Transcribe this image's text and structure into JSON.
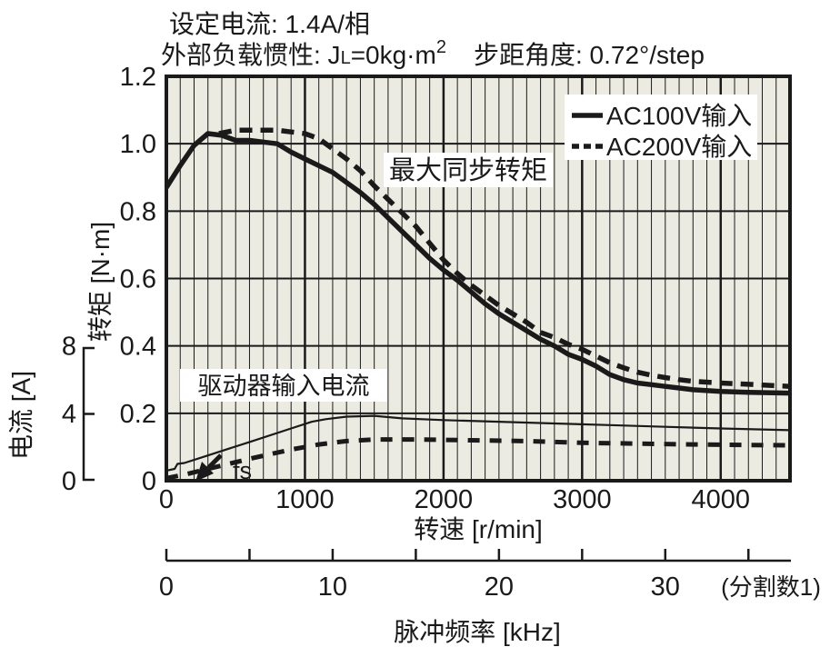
{
  "header": {
    "line1": "设定电流: 1.4A/相",
    "line2_prefix": "外部负载惯性: J",
    "line2_sub": "L",
    "line2_mid": "=0kg·m",
    "line2_sup": "2",
    "line2_right": "步距角度: 0.72°/step"
  },
  "chart_data": {
    "type": "line",
    "title": "设定电流: 1.4A/相  外部负载惯性: JL=0kg·m²  步距角度: 0.72°/step",
    "x_axis": {
      "label": "转速 [r/min]",
      "min": 0,
      "max": 4500,
      "minor_step": 100,
      "major_ticks": [
        0,
        1000,
        2000,
        3000,
        4000
      ],
      "major_tick_labels": [
        "0",
        "1000",
        "2000",
        "3000",
        "4000"
      ],
      "grid": true
    },
    "y_axis": {
      "label": "转矩 [N·m]",
      "min": 0,
      "max": 1.2,
      "ticks": [
        {
          "v": 0,
          "label": "0"
        },
        {
          "v": 0.2,
          "label": "0.2"
        },
        {
          "v": 0.4,
          "label": "0.4"
        },
        {
          "v": 0.6,
          "label": "0.6"
        },
        {
          "v": 0.8,
          "label": "0.8"
        },
        {
          "v": 1.0,
          "label": "1.0"
        },
        {
          "v": 1.2,
          "label": "1.2"
        }
      ],
      "grid": true
    },
    "y2_axis": {
      "label": "电流 [A]",
      "min": 0,
      "max": 8,
      "ticks": [
        {
          "v": 0,
          "label": "0"
        },
        {
          "v": 4,
          "label": "4"
        },
        {
          "v": 8,
          "label": "8"
        }
      ],
      "nm_per_amp": 0.05
    },
    "x2_axis": {
      "label": "脉冲频率 [kHz]",
      "note": "(分割数1)",
      "min": 0,
      "tick_step_khz": 5,
      "max_tick_khz": 35,
      "rpm_per_khz": 120,
      "labeled_ticks": [
        {
          "khz": 0,
          "label": "0"
        },
        {
          "khz": 10,
          "label": "10"
        },
        {
          "khz": 20,
          "label": "20"
        },
        {
          "khz": 30,
          "label": "30"
        }
      ]
    },
    "legend": {
      "position": "top-right",
      "entries": [
        {
          "label": "AC100V输入",
          "line": "solid"
        },
        {
          "label": "AC200V输入",
          "line": "dashed"
        }
      ]
    },
    "annotations": [
      {
        "text": "最大同步转矩",
        "target": "torque curves"
      },
      {
        "text": "驱动器输入电流",
        "target": "current curves"
      },
      {
        "text": "fs",
        "target": "arrow to x-axis at ~240 r/min"
      }
    ],
    "series": [
      {
        "name": "AC100V输入 最大同步转矩",
        "axis": "torque",
        "style": "solid",
        "unit": "N·m",
        "points": [
          [
            0,
            0.87
          ],
          [
            100,
            0.935
          ],
          [
            200,
            0.995
          ],
          [
            300,
            1.03
          ],
          [
            400,
            1.025
          ],
          [
            500,
            1.01
          ],
          [
            600,
            1.01
          ],
          [
            700,
            1.005
          ],
          [
            800,
            1.0
          ],
          [
            900,
            0.975
          ],
          [
            1000,
            0.955
          ],
          [
            1100,
            0.935
          ],
          [
            1200,
            0.915
          ],
          [
            1300,
            0.885
          ],
          [
            1400,
            0.855
          ],
          [
            1500,
            0.82
          ],
          [
            1600,
            0.78
          ],
          [
            1700,
            0.74
          ],
          [
            1800,
            0.7
          ],
          [
            1900,
            0.66
          ],
          [
            2000,
            0.625
          ],
          [
            2100,
            0.595
          ],
          [
            2200,
            0.56
          ],
          [
            2300,
            0.525
          ],
          [
            2400,
            0.495
          ],
          [
            2500,
            0.47
          ],
          [
            2600,
            0.445
          ],
          [
            2700,
            0.42
          ],
          [
            2800,
            0.4
          ],
          [
            2900,
            0.375
          ],
          [
            3000,
            0.36
          ],
          [
            3100,
            0.34
          ],
          [
            3200,
            0.315
          ],
          [
            3300,
            0.3
          ],
          [
            3400,
            0.29
          ],
          [
            3500,
            0.285
          ],
          [
            3600,
            0.28
          ],
          [
            3700,
            0.275
          ],
          [
            3800,
            0.27
          ],
          [
            4000,
            0.265
          ],
          [
            4200,
            0.262
          ],
          [
            4500,
            0.26
          ]
        ]
      },
      {
        "name": "AC200V输入 最大同步转矩",
        "axis": "torque",
        "style": "dashed",
        "unit": "N·m",
        "points": [
          [
            380,
            1.03
          ],
          [
            500,
            1.04
          ],
          [
            600,
            1.04
          ],
          [
            700,
            1.04
          ],
          [
            800,
            1.04
          ],
          [
            900,
            1.035
          ],
          [
            1000,
            1.03
          ],
          [
            1100,
            1.015
          ],
          [
            1200,
            0.985
          ],
          [
            1300,
            0.955
          ],
          [
            1400,
            0.92
          ],
          [
            1500,
            0.875
          ],
          [
            1600,
            0.835
          ],
          [
            1700,
            0.795
          ],
          [
            1800,
            0.755
          ],
          [
            1900,
            0.705
          ],
          [
            2000,
            0.655
          ],
          [
            2100,
            0.615
          ],
          [
            2200,
            0.58
          ],
          [
            2300,
            0.55
          ],
          [
            2400,
            0.52
          ],
          [
            2500,
            0.495
          ],
          [
            2600,
            0.47
          ],
          [
            2700,
            0.44
          ],
          [
            2800,
            0.425
          ],
          [
            2900,
            0.405
          ],
          [
            3000,
            0.39
          ],
          [
            3100,
            0.37
          ],
          [
            3200,
            0.35
          ],
          [
            3300,
            0.335
          ],
          [
            3400,
            0.322
          ],
          [
            3500,
            0.313
          ],
          [
            3600,
            0.306
          ],
          [
            3700,
            0.3
          ],
          [
            3800,
            0.295
          ],
          [
            4000,
            0.29
          ],
          [
            4200,
            0.286
          ],
          [
            4500,
            0.28
          ]
        ]
      },
      {
        "name": "AC100V输入 驱动器输入电流",
        "axis": "current",
        "style": "solid-thin",
        "unit": "A",
        "points": [
          [
            0,
            0.6
          ],
          [
            60,
            0.7
          ],
          [
            80,
            1.0
          ],
          [
            130,
            1.05
          ],
          [
            300,
            1.5
          ],
          [
            600,
            2.3
          ],
          [
            900,
            3.1
          ],
          [
            1050,
            3.5
          ],
          [
            1150,
            3.65
          ],
          [
            1300,
            3.8
          ],
          [
            1500,
            3.85
          ],
          [
            1700,
            3.7
          ],
          [
            2000,
            3.6
          ],
          [
            2400,
            3.5
          ],
          [
            2800,
            3.4
          ],
          [
            3200,
            3.3
          ],
          [
            3600,
            3.2
          ],
          [
            4000,
            3.1
          ],
          [
            4500,
            3.0
          ]
        ]
      },
      {
        "name": "AC200V输入 驱动器输入电流",
        "axis": "current",
        "style": "dashed-wide",
        "unit": "A",
        "points": [
          [
            0,
            0.15
          ],
          [
            150,
            0.4
          ],
          [
            300,
            0.7
          ],
          [
            600,
            1.3
          ],
          [
            900,
            1.85
          ],
          [
            1100,
            2.15
          ],
          [
            1300,
            2.35
          ],
          [
            1500,
            2.45
          ],
          [
            1800,
            2.45
          ],
          [
            2200,
            2.4
          ],
          [
            2600,
            2.35
          ],
          [
            3000,
            2.25
          ],
          [
            3400,
            2.2
          ],
          [
            3800,
            2.15
          ],
          [
            4500,
            2.1
          ]
        ]
      }
    ],
    "colors": {
      "ink": "#1a1a1a",
      "plot_bg": "#ECEBE2",
      "page_bg": "#FFFFFF",
      "label_box": "#FFFFFF"
    }
  }
}
